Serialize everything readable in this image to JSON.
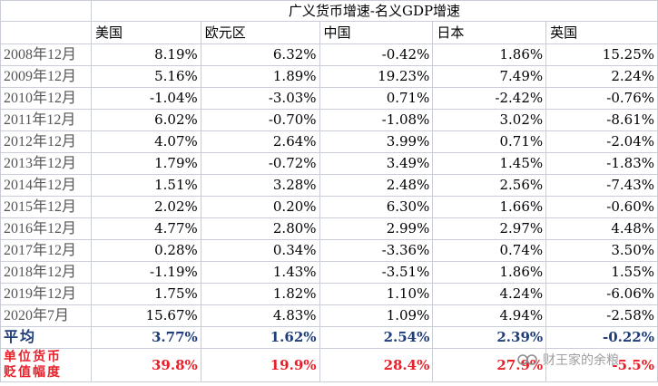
{
  "table": {
    "title": "广义货币增速-名义GDP增速",
    "headers": [
      "美国",
      "欧元区",
      "中国",
      "日本",
      "英国"
    ],
    "rows": [
      {
        "label": "2008年12月",
        "values": [
          "8.19%",
          "6.32%",
          "-0.42%",
          "1.86%",
          "15.25%"
        ]
      },
      {
        "label": "2009年12月",
        "values": [
          "5.16%",
          "1.89%",
          "19.23%",
          "7.49%",
          "2.24%"
        ]
      },
      {
        "label": "2010年12月",
        "values": [
          "-1.04%",
          "-3.03%",
          "0.71%",
          "-2.42%",
          "-0.76%"
        ]
      },
      {
        "label": "2011年12月",
        "values": [
          "6.02%",
          "-0.70%",
          "-1.08%",
          "3.02%",
          "-8.61%"
        ]
      },
      {
        "label": "2012年12月",
        "values": [
          "4.07%",
          "2.64%",
          "3.99%",
          "0.71%",
          "-2.04%"
        ]
      },
      {
        "label": "2013年12月",
        "values": [
          "1.79%",
          "-0.72%",
          "3.49%",
          "1.45%",
          "-1.83%"
        ]
      },
      {
        "label": "2014年12月",
        "values": [
          "1.51%",
          "3.28%",
          "2.48%",
          "2.56%",
          "-7.43%"
        ]
      },
      {
        "label": "2015年12月",
        "values": [
          "2.02%",
          "0.20%",
          "6.30%",
          "1.66%",
          "-0.60%"
        ]
      },
      {
        "label": "2016年12月",
        "values": [
          "4.77%",
          "2.80%",
          "2.99%",
          "2.97%",
          "4.48%"
        ]
      },
      {
        "label": "2017年12月",
        "values": [
          "0.28%",
          "0.34%",
          "-3.36%",
          "0.74%",
          "3.50%"
        ]
      },
      {
        "label": "2018年12月",
        "values": [
          "-1.19%",
          "1.43%",
          "-3.51%",
          "1.86%",
          "1.55%"
        ]
      },
      {
        "label": "2019年12月",
        "values": [
          "1.75%",
          "1.82%",
          "1.10%",
          "4.24%",
          "-6.06%"
        ]
      },
      {
        "label": "2020年7月",
        "values": [
          "15.67%",
          "4.83%",
          "1.09%",
          "4.94%",
          "-2.58%"
        ]
      }
    ],
    "average": {
      "label": "平均",
      "values": [
        "3.77%",
        "1.62%",
        "2.54%",
        "2.39%",
        "-0.22%"
      ]
    },
    "devaluation": {
      "label_line1": "单位货币",
      "label_line2": "贬值幅度",
      "values": [
        "39.8%",
        "19.9%",
        "28.4%",
        "27.9%",
        "-5.5%"
      ]
    }
  },
  "watermark": {
    "icon": "wechat-channel-icon",
    "text": "财王家的余粮"
  },
  "colors": {
    "avg_text": "#1f3d7a",
    "deval_text": "#e8202a",
    "grid": "#c8cdd6"
  }
}
